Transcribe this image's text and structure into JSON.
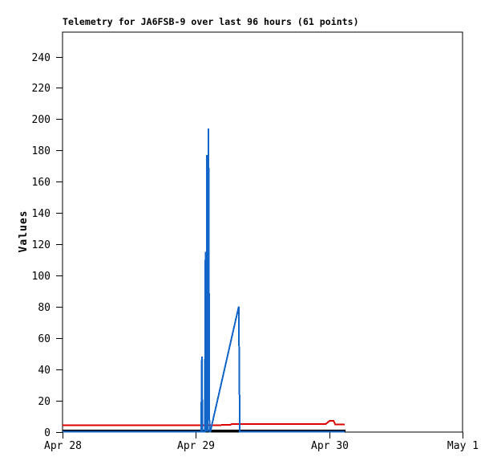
{
  "page": {
    "background": "#ffffff"
  },
  "chart_data": {
    "type": "line",
    "title": "Telemetry for JA6FSB-9 over last 96 hours (61 points)",
    "station": "JA6FSB-9",
    "points_count": 61,
    "xlabel": "",
    "ylabel": "Values",
    "grid": false,
    "legend": false,
    "frame_color": "#000000",
    "x_axis": {
      "unit": "hours_from_start",
      "range": [
        0,
        72
      ],
      "ticks": [
        {
          "label": "Apr 28",
          "hour": 0
        },
        {
          "label": "Apr 29",
          "hour": 24
        },
        {
          "label": "Apr 30",
          "hour": 48
        },
        {
          "label": "May 1",
          "hour": 72
        }
      ]
    },
    "y_axis": {
      "range": [
        0,
        256
      ],
      "tick_step": 20,
      "ticks": [
        0,
        20,
        40,
        60,
        80,
        100,
        120,
        140,
        160,
        180,
        200,
        220,
        240
      ]
    },
    "series": [
      {
        "name": "channel-red",
        "color": "#dd0000",
        "stroke_width": 2,
        "points": [
          [
            0,
            4
          ],
          [
            23.9,
            4
          ],
          [
            30.2,
            4.3
          ],
          [
            30.5,
            5
          ],
          [
            47.4,
            5
          ],
          [
            48.1,
            7
          ],
          [
            48.8,
            7
          ],
          [
            49.1,
            4.5
          ],
          [
            50.8,
            4.5
          ]
        ]
      },
      {
        "name": "channel-black",
        "color": "#000000",
        "stroke_width": 3.5,
        "points": [
          [
            0,
            0.4
          ],
          [
            50.9,
            0.4
          ]
        ]
      },
      {
        "name": "channel-blue",
        "color": "#1164c8",
        "stroke_width": 2,
        "points": [
          [
            0,
            0
          ],
          [
            24.95,
            0
          ],
          [
            25.08,
            48
          ],
          [
            25.2,
            0
          ],
          [
            25.6,
            0
          ],
          [
            25.72,
            115
          ],
          [
            25.85,
            0
          ],
          [
            25.98,
            177
          ],
          [
            26.1,
            0
          ],
          [
            26.28,
            194
          ],
          [
            26.45,
            0
          ],
          [
            26.6,
            0
          ],
          [
            31.72,
            80
          ],
          [
            31.82,
            41
          ],
          [
            31.9,
            0
          ],
          [
            50.8,
            0
          ]
        ]
      }
    ]
  }
}
